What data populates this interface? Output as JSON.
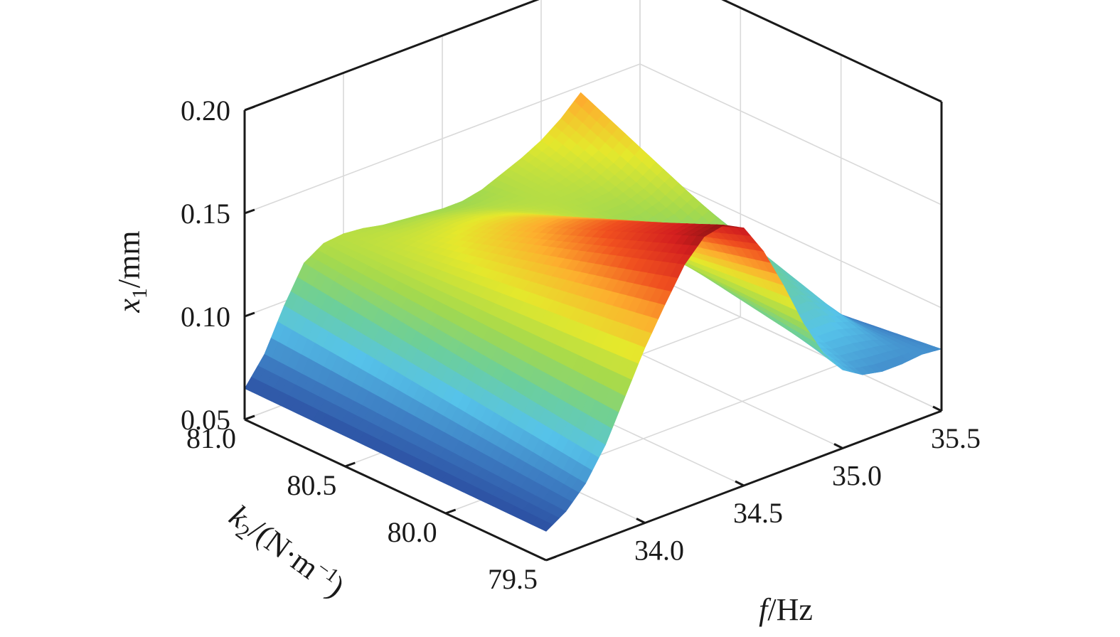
{
  "chart_data": {
    "type": "surface",
    "title": "",
    "zlabel": {
      "sym": "x",
      "sub": "1",
      "unit": "/mm"
    },
    "ylabel": {
      "sym": "k",
      "sub": "2",
      "unit": "/(N·m",
      "sup": "−1",
      "close": ")"
    },
    "xlabel": {
      "sym": "f",
      "unit": "/Hz"
    },
    "x": {
      "ticks": [
        "34.0",
        "34.5",
        "35.0",
        "35.5"
      ],
      "range": [
        33.5,
        35.5
      ]
    },
    "y": {
      "ticks": [
        "81.0",
        "80.5",
        "80.0",
        "79.5"
      ],
      "range": [
        79.5,
        81.0
      ]
    },
    "z": {
      "ticks": [
        "0.05",
        "0.10",
        "0.15",
        "0.20"
      ],
      "range": [
        0.05,
        0.2
      ]
    },
    "grid": true,
    "colormap": [
      "#313695",
      "#2b4da0",
      "#3e7fc4",
      "#56c3ea",
      "#6ccf9a",
      "#a3d94e",
      "#e5e82c",
      "#fdae2e",
      "#f0501f",
      "#d31f1f",
      "#6b0d0d"
    ],
    "surface_profiles": {
      "description_free": true,
      "f_values": [
        33.5,
        33.6,
        33.7,
        33.8,
        33.9,
        34.0,
        34.1,
        34.2,
        34.3,
        34.4,
        34.5,
        34.6,
        34.7,
        34.8,
        34.9,
        35.0,
        35.1,
        35.2,
        35.3,
        35.4,
        35.5
      ],
      "x1_at_k2_81_0": [
        0.065,
        0.078,
        0.098,
        0.115,
        0.121,
        0.122,
        0.121,
        0.119,
        0.118,
        0.117,
        0.116,
        0.116,
        0.118,
        0.122,
        0.126,
        0.131,
        0.138,
        0.147,
        0.128,
        0.083,
        0.062
      ],
      "x1_at_k2_79_5": [
        0.064,
        0.07,
        0.08,
        0.095,
        0.115,
        0.135,
        0.152,
        0.168,
        0.178,
        0.18,
        0.175,
        0.16,
        0.14,
        0.118,
        0.1,
        0.088,
        0.082,
        0.08,
        0.08,
        0.081,
        0.08
      ]
    }
  }
}
